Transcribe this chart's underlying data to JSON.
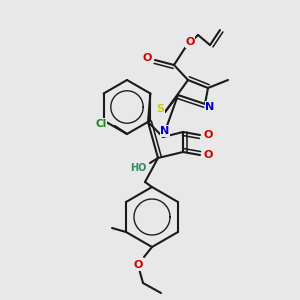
{
  "bg_color": "#e8e8e8",
  "bond_color": "#1a1a1a",
  "lw": 1.5,
  "dpi": 100,
  "figsize": [
    3.0,
    3.0
  ],
  "xlim": [
    0,
    300
  ],
  "ylim": [
    0,
    300
  ]
}
